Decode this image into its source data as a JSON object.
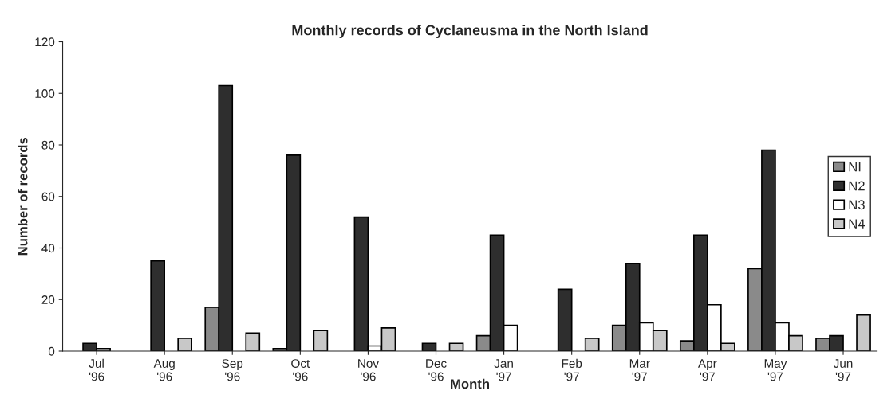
{
  "chart_data": {
    "type": "bar",
    "title": "Monthly records of Cyclaneusma in the North Island",
    "xlabel": "Month",
    "ylabel": "Number of records",
    "categories": [
      "Jul\n'96",
      "Aug\n'96",
      "Sep\n'96",
      "Oct\n'96",
      "Nov\n'96",
      "Dec\n'96",
      "Jan\n'97",
      "Feb\n'97",
      "Mar\n'97",
      "Apr\n'97",
      "May\n'97",
      "Jun\n'97"
    ],
    "series": [
      {
        "name": "NI",
        "color": "#8a8a8a",
        "values": [
          null,
          null,
          17,
          1,
          null,
          null,
          6,
          null,
          10,
          4,
          32,
          5
        ]
      },
      {
        "name": "N2",
        "color": "#2e2e2e",
        "values": [
          3,
          35,
          103,
          76,
          52,
          3,
          45,
          24,
          34,
          45,
          78,
          6
        ]
      },
      {
        "name": "N3",
        "color": "#ffffff",
        "values": [
          1,
          null,
          null,
          null,
          2,
          null,
          10,
          null,
          11,
          18,
          11,
          null
        ]
      },
      {
        "name": "N4",
        "color": "#c8c8c8",
        "values": [
          null,
          5,
          7,
          8,
          9,
          3,
          null,
          5,
          8,
          3,
          6,
          14
        ]
      }
    ],
    "ylim": [
      0,
      120
    ],
    "yticks": [
      0,
      20,
      40,
      60,
      80,
      100,
      120
    ],
    "grid": false,
    "legend": "right"
  }
}
